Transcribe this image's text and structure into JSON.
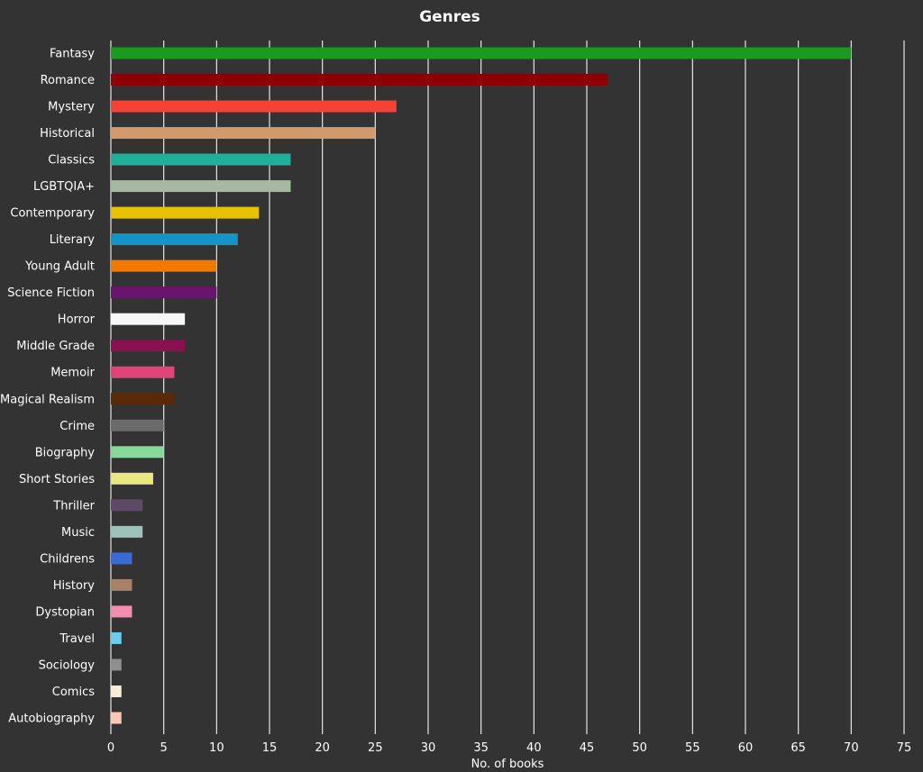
{
  "chart_data": {
    "type": "bar",
    "orientation": "horizontal",
    "title": "Genres",
    "xlabel": "No. of books",
    "ylabel": "",
    "xlim": [
      0,
      75
    ],
    "xticks": [
      0,
      5,
      10,
      15,
      20,
      25,
      30,
      35,
      40,
      45,
      50,
      55,
      60,
      65,
      70,
      75
    ],
    "grid": true,
    "categories": [
      "Fantasy",
      "Romance",
      "Mystery",
      "Historical",
      "Classics",
      "LGBTQIA+",
      "Contemporary",
      "Literary",
      "Young Adult",
      "Science Fiction",
      "Horror",
      "Middle Grade",
      "Memoir",
      "Magical Realism",
      "Crime",
      "Biography",
      "Short Stories",
      "Thriller",
      "Music",
      "Childrens",
      "History",
      "Dystopian",
      "Travel",
      "Sociology",
      "Comics",
      "Autobiography"
    ],
    "values": [
      70,
      47,
      27,
      25,
      17,
      17,
      14,
      12,
      10,
      10,
      7,
      7,
      6,
      6,
      5,
      5,
      4,
      3,
      3,
      2,
      2,
      2,
      1,
      1,
      1,
      1
    ],
    "colors": [
      "#1a9a1f",
      "#8b0000",
      "#f44336",
      "#d4996a",
      "#20b09a",
      "#a9b8a4",
      "#e8c100",
      "#1495c7",
      "#ef7a00",
      "#6a1470",
      "#f7f7f7",
      "#8a1150",
      "#e0457a",
      "#5a2a08",
      "#6b6b6b",
      "#86d99a",
      "#e7e87d",
      "#5e4a66",
      "#9ec1b9",
      "#3a6ad6",
      "#a88266",
      "#f28fb1",
      "#6ecbf2",
      "#8f8f8f",
      "#faedd9",
      "#ffc7b8"
    ]
  }
}
